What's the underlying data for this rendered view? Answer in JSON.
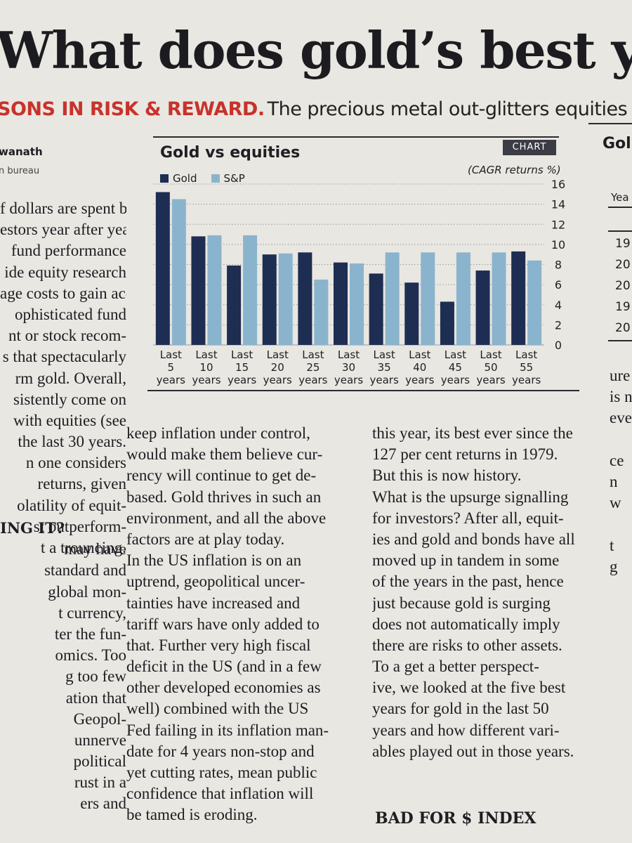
{
  "headline": "What does gold’s best y",
  "subhead": {
    "kicker": "SONS IN RISK & REWARD.",
    "deck": "The precious metal out-glitters equities"
  },
  "byline": {
    "name": "wanath",
    "bureau": "n bureau"
  },
  "col1_top": [
    "f dollars are spent by",
    "estors year after year",
    "fund performance",
    "ide equity research",
    "age costs to gain ac-",
    "ophisticated fund",
    "nt or stock recom-",
    "s that spectacularly",
    "rm gold. Overall,",
    "sistently come on",
    "with equities (see",
    "the last 30 years.",
    "n one considers",
    "returns, given",
    "olatility of equit-",
    "st outperform-",
    "t a trouncing."
  ],
  "col1_subhead": "ING IT?",
  "col1_bottom": [
    "may have",
    "standard and",
    "global mon-",
    "t currency,",
    "ter the fun-",
    "omics. Too",
    "g too few",
    "ation that",
    "Geopol-",
    "unnerve",
    "political",
    "rust in a",
    "ers and"
  ],
  "col2": [
    "keep inflation under control,",
    "would make them believe cur-",
    "rency will continue to get de-",
    "based. Gold thrives in such an",
    "environment, and all the above",
    "factors are at play today.",
    "In the US inflation is on an",
    "uptrend, geopolitical uncer-",
    "tainties have increased and",
    "tariff wars have only added to",
    "that. Further very high fiscal",
    "deficit in the US (and in a few",
    "other developed economies as",
    "well) combined with the US",
    "Fed failing in its inflation man-",
    "date for 4 years non-stop and",
    "yet cutting rates, mean public",
    "confidence that inflation will",
    "be tamed is eroding."
  ],
  "col3": [
    "this year, its best ever since the",
    "127 per cent returns in 1979.",
    "But this is now history.",
    "What is the upsurge signalling",
    "for investors? After all, equit-",
    "ies and gold and bonds have all",
    "moved up in tandem in some",
    "of the years in the past, hence",
    "just because gold is surging",
    "does not automatically imply",
    "there are risks to other assets.",
    "To a get a better perspect-",
    "ive, we looked at the five best",
    "years for gold in the last 50",
    "years and how different vari-",
    "ables played out in those years."
  ],
  "col3_subhead": "BAD FOR $ INDEX",
  "col4": [
    "ure",
    "is n",
    "eve",
    "",
    "ce",
    "n",
    "w",
    "",
    "t",
    "g"
  ],
  "right_panel": {
    "title": "Gol",
    "header": "Yea",
    "years": [
      "19",
      "20",
      "20",
      "19",
      "20"
    ]
  },
  "chart_tag": "CHART",
  "colors": {
    "gold": "#1e2d52",
    "sp": "#8ab4cd",
    "grid": "#9a9aa0"
  },
  "chart_data": {
    "type": "bar",
    "title": "Gold vs equities",
    "ylabel": "(CAGR returns %)",
    "ylim": [
      0,
      16
    ],
    "yticks": [
      0,
      2,
      4,
      6,
      8,
      10,
      12,
      14,
      16
    ],
    "categories": [
      [
        "Last",
        "5",
        "years"
      ],
      [
        "Last",
        "10",
        "years"
      ],
      [
        "Last",
        "15",
        "years"
      ],
      [
        "Last",
        "20",
        "years"
      ],
      [
        "Last",
        "25",
        "years"
      ],
      [
        "Last",
        "30",
        "years"
      ],
      [
        "Last",
        "35",
        "years"
      ],
      [
        "Last",
        "40",
        "years"
      ],
      [
        "Last",
        "45",
        "years"
      ],
      [
        "Last",
        "50",
        "years"
      ],
      [
        "Last",
        "55",
        "years"
      ]
    ],
    "series": [
      {
        "name": "Gold",
        "values": [
          15.2,
          10.8,
          7.9,
          9.0,
          9.2,
          8.2,
          7.1,
          6.2,
          4.3,
          7.4,
          9.3
        ]
      },
      {
        "name": "S&P",
        "values": [
          14.5,
          10.9,
          10.9,
          9.1,
          6.5,
          8.1,
          9.2,
          9.2,
          9.2,
          9.2,
          8.4
        ]
      }
    ]
  }
}
